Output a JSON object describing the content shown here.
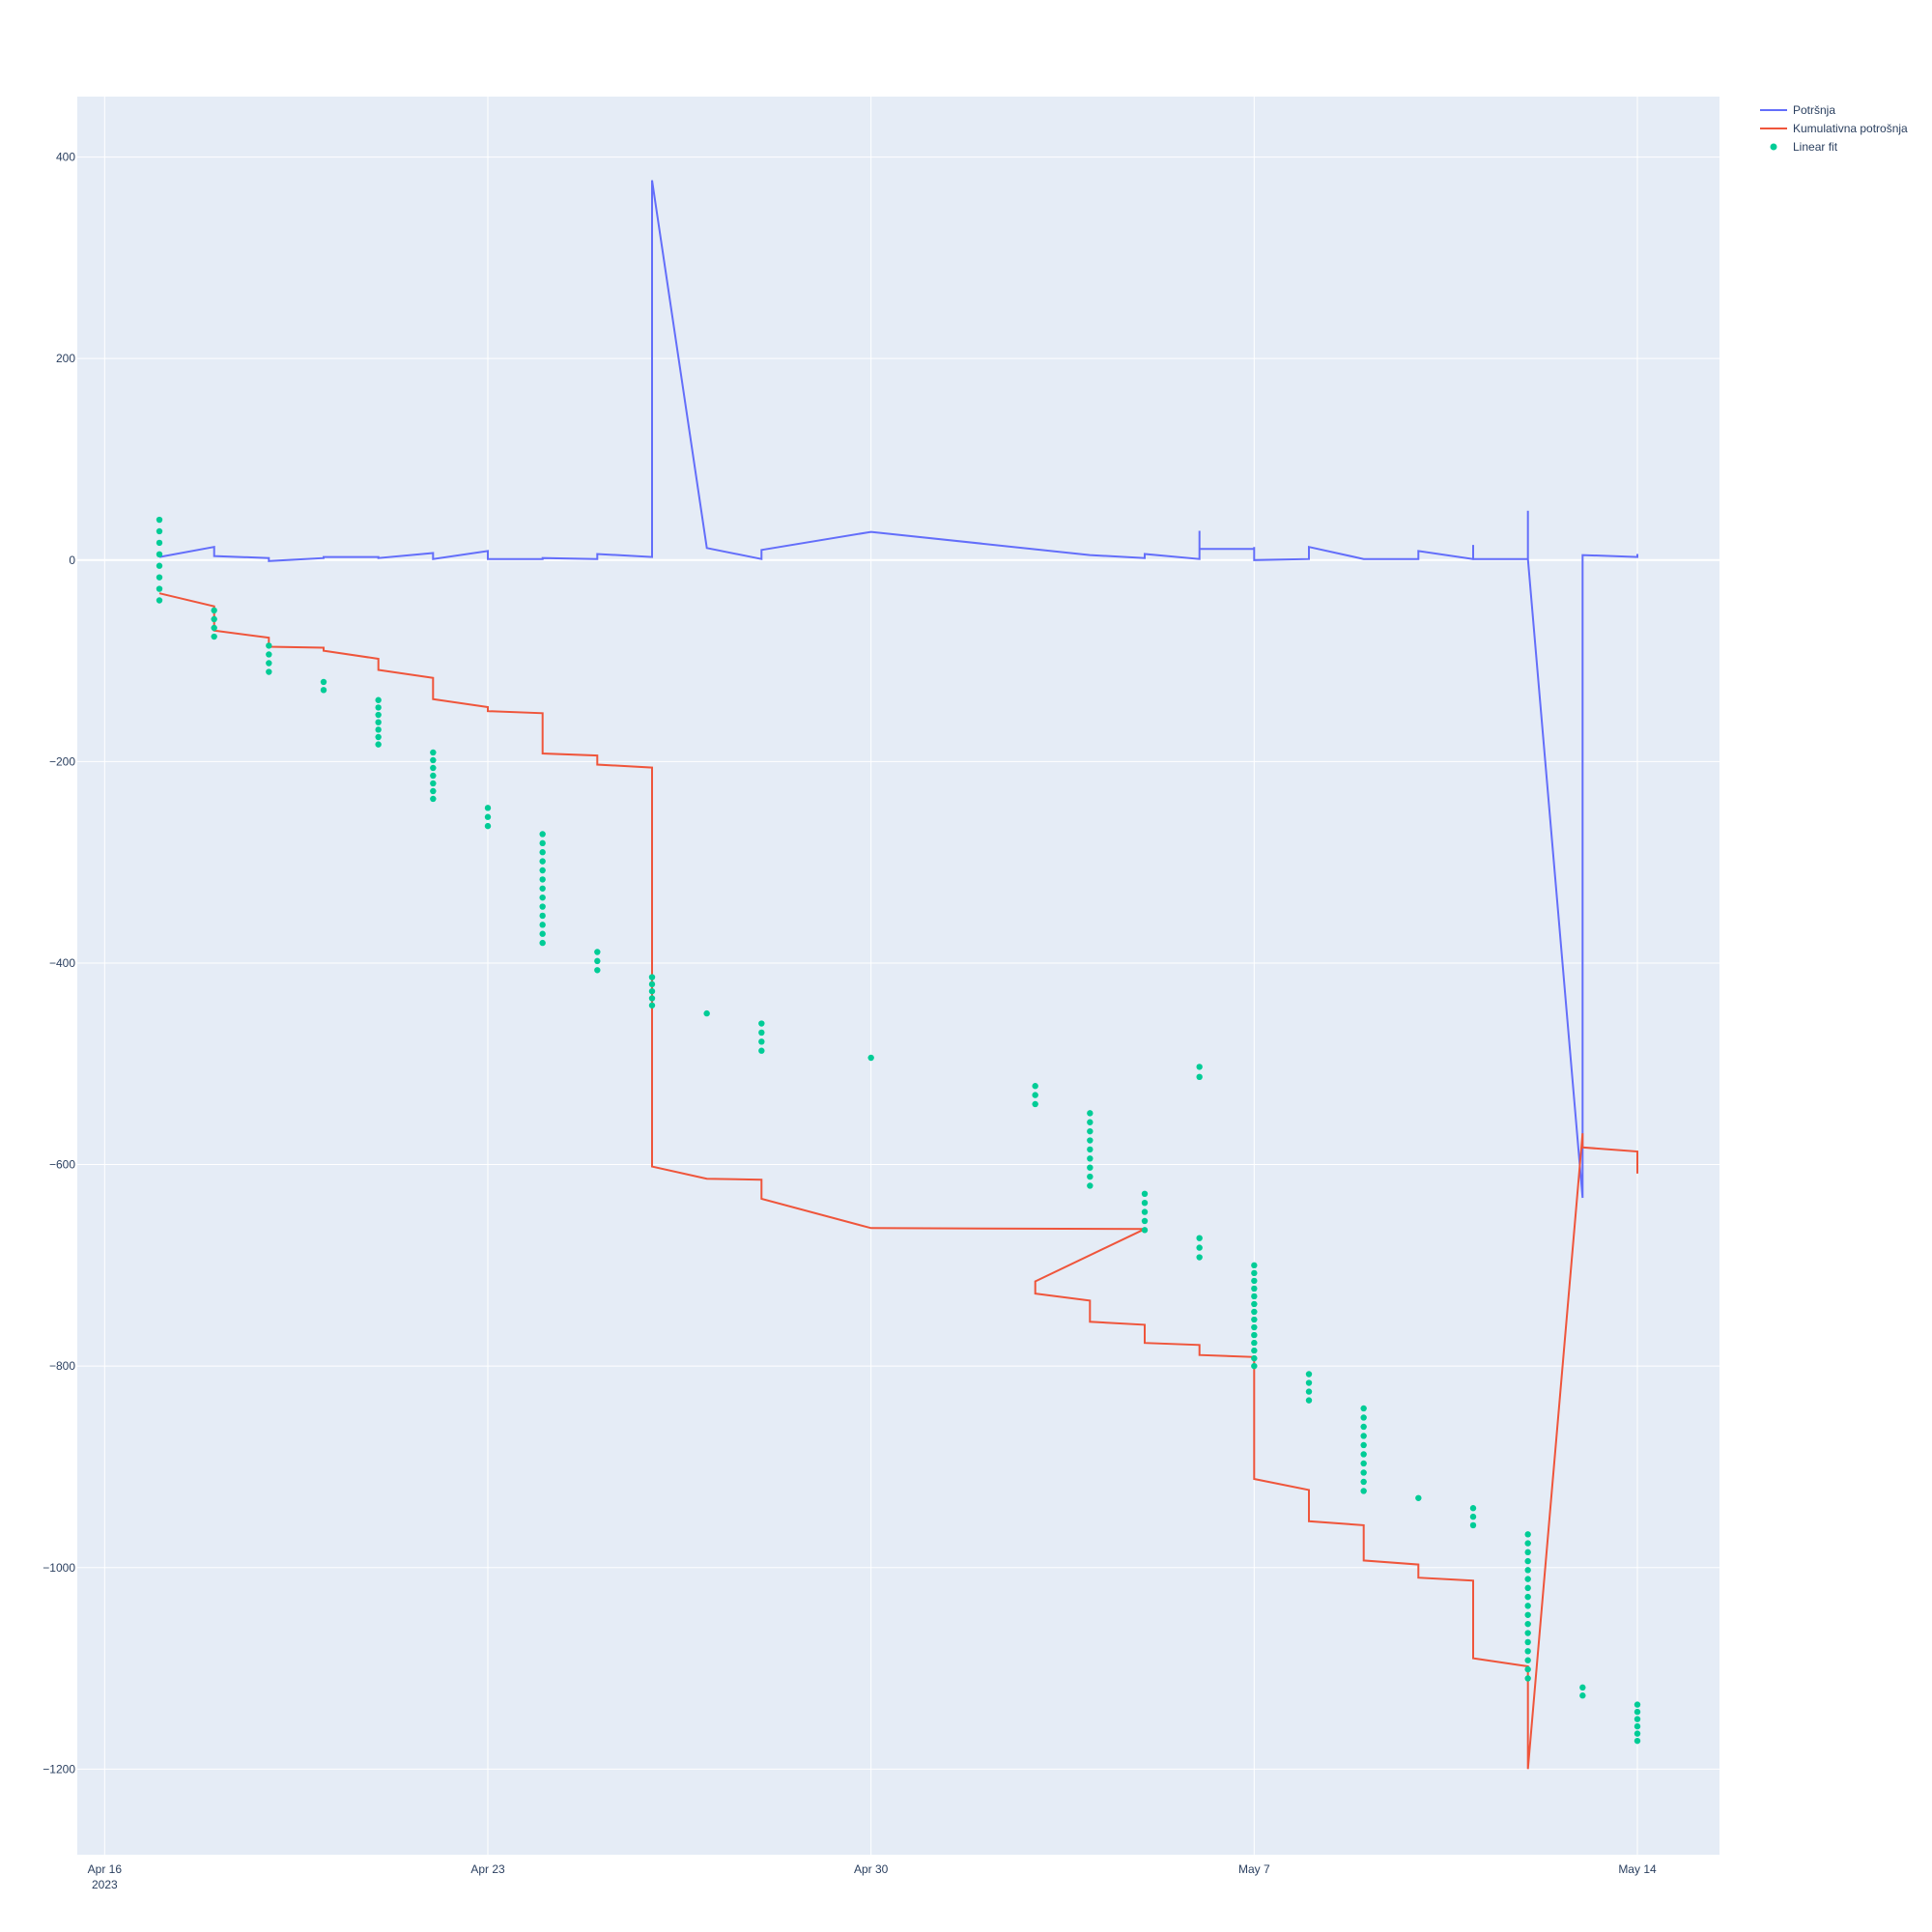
{
  "chart_data": {
    "type": "line",
    "title": "",
    "xlabel": "",
    "ylabel": "",
    "x_range": [
      "2023-04-15 12:00",
      "2023-05-15 12:00"
    ],
    "ylim": [
      -1285,
      460
    ],
    "x_ticks": [
      {
        "date": "2023-04-16",
        "label": "Apr 16",
        "sublabel": "2023"
      },
      {
        "date": "2023-04-23",
        "label": "Apr 23",
        "sublabel": ""
      },
      {
        "date": "2023-04-30",
        "label": "Apr 30",
        "sublabel": ""
      },
      {
        "date": "2023-05-07",
        "label": "May 7",
        "sublabel": ""
      },
      {
        "date": "2023-05-14",
        "label": "May 14",
        "sublabel": ""
      }
    ],
    "y_ticks": [
      400,
      200,
      0,
      -200,
      -400,
      -600,
      -800,
      -1000,
      -1200
    ],
    "y_tick_labels": [
      "400",
      "200",
      "0",
      "−200",
      "−400",
      "−600",
      "−800",
      "−1000",
      "−1200"
    ],
    "grid": true,
    "legend_position": "top-right",
    "series": [
      {
        "name": "Potršnja",
        "type": "line",
        "color": "#636efa",
        "points": [
          [
            "2023-04-17 00:00",
            3
          ],
          [
            "2023-04-18 00:00",
            13
          ],
          [
            "2023-04-18 00:00",
            4
          ],
          [
            "2023-04-19 00:00",
            2
          ],
          [
            "2023-04-19 00:00",
            -1
          ],
          [
            "2023-04-20 00:00",
            2
          ],
          [
            "2023-04-20 00:00",
            3
          ],
          [
            "2023-04-21 00:00",
            3
          ],
          [
            "2023-04-21 00:00",
            2
          ],
          [
            "2023-04-22 00:00",
            7
          ],
          [
            "2023-04-22 00:00",
            1
          ],
          [
            "2023-04-23 00:00",
            9
          ],
          [
            "2023-04-23 00:00",
            1
          ],
          [
            "2023-04-24 00:00",
            1
          ],
          [
            "2023-04-24 00:00",
            2
          ],
          [
            "2023-04-25 00:00",
            1
          ],
          [
            "2023-04-25 00:00",
            6
          ],
          [
            "2023-04-26 00:00",
            3
          ],
          [
            "2023-04-26 00:00",
            377
          ],
          [
            "2023-04-27 00:00",
            12
          ],
          [
            "2023-04-28 00:00",
            1
          ],
          [
            "2023-04-28 00:00",
            10
          ],
          [
            "2023-04-30 00:00",
            28
          ],
          [
            "2023-05-04 00:00",
            5
          ],
          [
            "2023-05-05 00:00",
            2
          ],
          [
            "2023-05-05 00:00",
            6
          ],
          [
            "2023-05-06 00:00",
            1
          ],
          [
            "2023-05-06 00:00",
            29
          ],
          [
            "2023-05-06 00:00",
            11
          ],
          [
            "2023-05-07 00:00",
            11
          ],
          [
            "2023-05-07 00:00",
            13
          ],
          [
            "2023-05-07 00:00",
            0
          ],
          [
            "2023-05-08 00:00",
            1
          ],
          [
            "2023-05-08 00:00",
            13
          ],
          [
            "2023-05-09 00:00",
            1
          ],
          [
            "2023-05-10 00:00",
            1
          ],
          [
            "2023-05-10 00:00",
            9
          ],
          [
            "2023-05-11 00:00",
            1
          ],
          [
            "2023-05-11 00:00",
            15
          ],
          [
            "2023-05-11 00:00",
            1
          ],
          [
            "2023-05-12 00:00",
            1
          ],
          [
            "2023-05-12 00:00",
            49
          ],
          [
            "2023-05-12 00:00",
            1
          ],
          [
            "2023-05-13 00:00",
            -633
          ],
          [
            "2023-05-13 00:00",
            5
          ],
          [
            "2023-05-14 00:00",
            3
          ],
          [
            "2023-05-14 00:00",
            6
          ]
        ]
      },
      {
        "name": "Kumulativna potrošnja",
        "type": "line",
        "color": "#ef553b",
        "points": [
          [
            "2023-04-17 00:00",
            -33
          ],
          [
            "2023-04-18 00:00",
            -46
          ],
          [
            "2023-04-18 00:00",
            -70
          ],
          [
            "2023-04-19 00:00",
            -77
          ],
          [
            "2023-04-19 00:00",
            -86
          ],
          [
            "2023-04-20 00:00",
            -87
          ],
          [
            "2023-04-20 00:00",
            -90
          ],
          [
            "2023-04-21 00:00",
            -98
          ],
          [
            "2023-04-21 00:00",
            -109
          ],
          [
            "2023-04-22 00:00",
            -117
          ],
          [
            "2023-04-22 00:00",
            -138
          ],
          [
            "2023-04-23 00:00",
            -146
          ],
          [
            "2023-04-23 00:00",
            -150
          ],
          [
            "2023-04-24 00:00",
            -152
          ],
          [
            "2023-04-24 00:00",
            -192
          ],
          [
            "2023-04-25 00:00",
            -194
          ],
          [
            "2023-04-25 00:00",
            -203
          ],
          [
            "2023-04-26 00:00",
            -206
          ],
          [
            "2023-04-26 00:00",
            -602
          ],
          [
            "2023-04-27 00:00",
            -614
          ],
          [
            "2023-04-28 00:00",
            -615
          ],
          [
            "2023-04-28 00:00",
            -634
          ],
          [
            "2023-04-30 00:00",
            -663
          ],
          [
            "2023-05-05 00:00",
            -664
          ],
          [
            "2023-05-03 00:00",
            -716
          ],
          [
            "2023-05-03 00:00",
            -728
          ],
          [
            "2023-05-04 00:00",
            -735
          ],
          [
            "2023-05-04 00:00",
            -756
          ],
          [
            "2023-05-05 00:00",
            -759
          ],
          [
            "2023-05-05 00:00",
            -777
          ],
          [
            "2023-05-06 00:00",
            -779
          ],
          [
            "2023-05-06 00:00",
            -789
          ],
          [
            "2023-05-07 00:00",
            -791
          ],
          [
            "2023-05-07 00:00",
            -912
          ],
          [
            "2023-05-08 00:00",
            -923
          ],
          [
            "2023-05-08 00:00",
            -954
          ],
          [
            "2023-05-09 00:00",
            -958
          ],
          [
            "2023-05-09 00:00",
            -993
          ],
          [
            "2023-05-10 00:00",
            -997
          ],
          [
            "2023-05-10 00:00",
            -1010
          ],
          [
            "2023-05-11 00:00",
            -1013
          ],
          [
            "2023-05-11 00:00",
            -1090
          ],
          [
            "2023-05-12 00:00",
            -1098
          ],
          [
            "2023-05-12 00:00",
            -1200
          ],
          [
            "2023-05-13 00:00",
            -569
          ],
          [
            "2023-05-13 00:00",
            -583
          ],
          [
            "2023-05-14 00:00",
            -587
          ],
          [
            "2023-05-14 00:00",
            -609
          ]
        ]
      },
      {
        "name": "Linear fit",
        "type": "scatter",
        "color": "#00cc96",
        "clusters": [
          [
            "2023-04-17 00:00",
            40,
            -40,
            8
          ],
          [
            "2023-04-18 00:00",
            -50,
            -76,
            4
          ],
          [
            "2023-04-19 00:00",
            -85,
            -111,
            4
          ],
          [
            "2023-04-20 00:00",
            -121,
            -129,
            2
          ],
          [
            "2023-04-21 00:00",
            -139,
            -183,
            7
          ],
          [
            "2023-04-22 00:00",
            -191,
            -237,
            7
          ],
          [
            "2023-04-23 00:00",
            -246,
            -264,
            3
          ],
          [
            "2023-04-24 00:00",
            -272,
            -380,
            13
          ],
          [
            "2023-04-25 00:00",
            -389,
            -407,
            3
          ],
          [
            "2023-04-26 00:00",
            -414,
            -442,
            5
          ],
          [
            "2023-04-27 00:00",
            -450,
            -450,
            1
          ],
          [
            "2023-04-28 00:00",
            -460,
            -487,
            4
          ],
          [
            "2023-04-30 00:00",
            -494,
            -494,
            1
          ],
          [
            "2023-05-03 00:00",
            -522,
            -540,
            3
          ],
          [
            "2023-05-04 00:00",
            -549,
            -621,
            9
          ],
          [
            "2023-05-05 00:00",
            -629,
            -665,
            5
          ],
          [
            "2023-05-06 00:00",
            -503,
            -513,
            2
          ],
          [
            "2023-05-06 00:00",
            -673,
            -692,
            3
          ],
          [
            "2023-05-07 00:00",
            -700,
            -800,
            14
          ],
          [
            "2023-05-08 00:00",
            -808,
            -834,
            4
          ],
          [
            "2023-05-09 00:00",
            -842,
            -924,
            10
          ],
          [
            "2023-05-10 00:00",
            -931,
            -931,
            1
          ],
          [
            "2023-05-11 00:00",
            -941,
            -958,
            3
          ],
          [
            "2023-05-12 00:00",
            -967,
            -1038,
            9
          ],
          [
            "2023-05-12 00:00",
            -1047,
            -1110,
            8
          ],
          [
            "2023-05-13 00:00",
            -1119,
            -1127,
            2
          ],
          [
            "2023-05-14 00:00",
            -1136,
            -1172,
            6
          ]
        ]
      }
    ]
  }
}
